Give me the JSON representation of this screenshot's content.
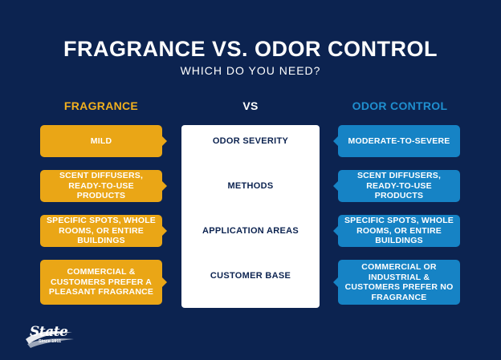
{
  "header": {
    "title": "FRAGRANCE VS. ODOR CONTROL",
    "subtitle": "WHICH DO YOU NEED?"
  },
  "columns": {
    "left": "FRAGRANCE",
    "middle": "VS",
    "right": "ODOR CONTROL"
  },
  "rows": [
    {
      "label": "ODOR SEVERITY",
      "fragrance": "MILD",
      "odor_control": "MODERATE-TO-SEVERE"
    },
    {
      "label": "METHODS",
      "fragrance": "SCENT DIFFUSERS, READY-TO-USE PRODUCTS",
      "odor_control": "SCENT DIFFUSERS, READY-TO-USE PRODUCTS"
    },
    {
      "label": "APPLICATION AREAS",
      "fragrance": "SPECIFIC SPOTS, WHOLE ROOMS, OR ENTIRE BUILDINGS",
      "odor_control": "SPECIFIC SPOTS, WHOLE ROOMS, OR ENTIRE BUILDINGS"
    },
    {
      "label": "CUSTOMER BASE",
      "fragrance": "COMMERCIAL & CUSTOMERS PREFER A PLEASANT FRAGRANCE",
      "odor_control": "COMMERCIAL OR INDUSTRIAL & CUSTOMERS PREFER NO FRAGRANCE"
    }
  ],
  "logo": {
    "name": "State",
    "tagline": "Since 1911",
    "icon": "state-logo-icon"
  },
  "colors": {
    "background": "#0c2350",
    "fragrance": "#eaa616",
    "odor_control": "#1683c5",
    "panel": "#ffffff"
  }
}
